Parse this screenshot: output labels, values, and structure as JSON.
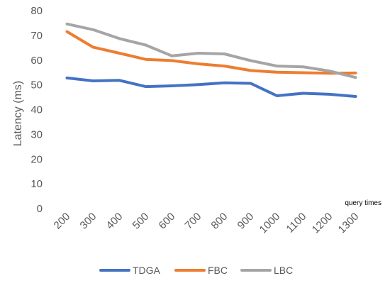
{
  "chart_data": {
    "type": "line",
    "title": "",
    "xlabel": "query times",
    "ylabel": "Latency (ms)",
    "categories": [
      "200",
      "300",
      "400",
      "500",
      "600",
      "700",
      "800",
      "900",
      "1000",
      "1100",
      "1200",
      "1300"
    ],
    "ylim": [
      0,
      80
    ],
    "yticks": [
      "0",
      "10",
      "20",
      "30",
      "40",
      "50",
      "60",
      "70",
      "80"
    ],
    "grid": false,
    "legend_position": "bottom",
    "series": [
      {
        "name": "TDGA",
        "color": "#4472C4",
        "values": [
          52.8,
          51.6,
          51.8,
          49.3,
          49.6,
          50.1,
          50.8,
          50.6,
          45.6,
          46.6,
          46.2,
          45.3
        ]
      },
      {
        "name": "FBC",
        "color": "#ED7D31",
        "values": [
          71.5,
          65.2,
          62.8,
          60.3,
          59.8,
          58.5,
          57.6,
          55.8,
          55.1,
          54.9,
          54.7,
          54.8
        ]
      },
      {
        "name": "LBC",
        "color": "#A5A5A5",
        "values": [
          74.6,
          72.3,
          68.7,
          66.1,
          61.7,
          62.8,
          62.5,
          59.8,
          57.6,
          57.3,
          55.6,
          53.0
        ]
      }
    ]
  }
}
